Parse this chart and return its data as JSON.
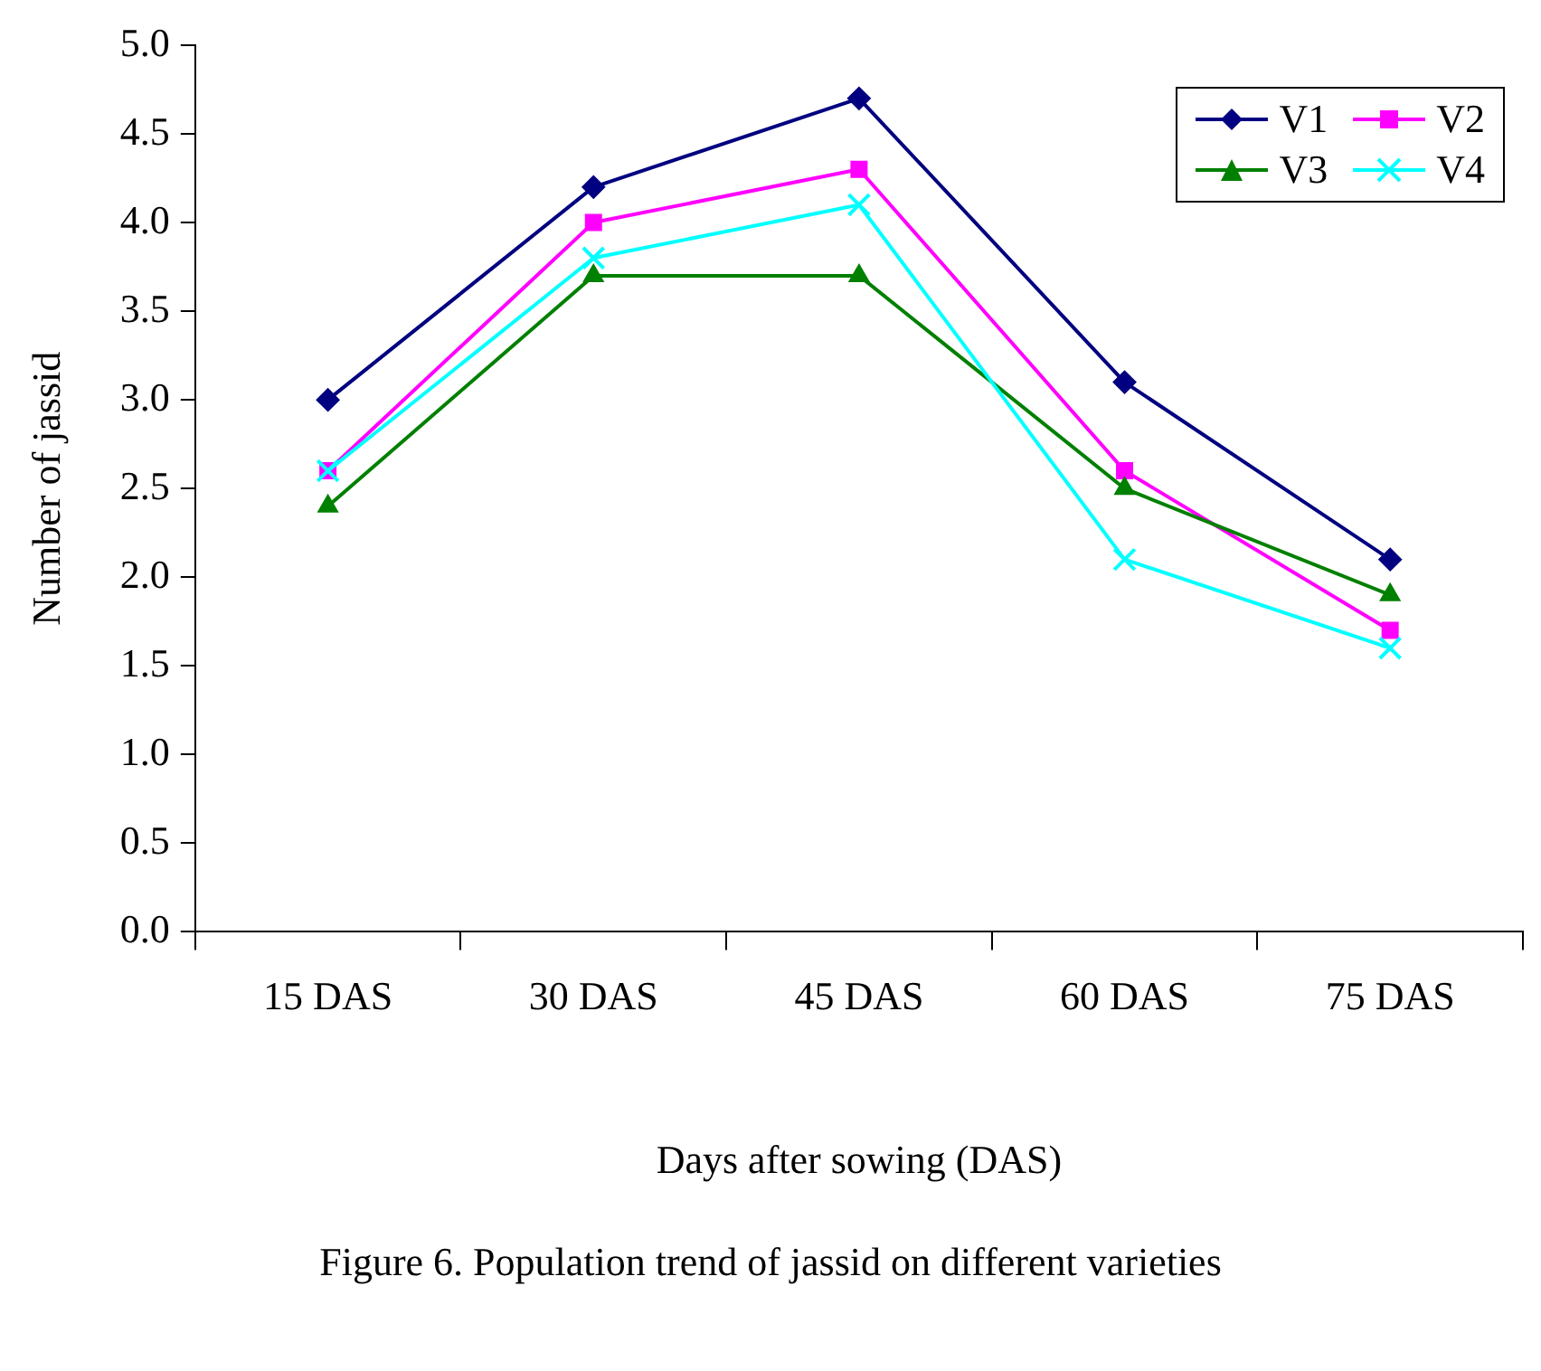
{
  "chart_data": {
    "type": "line",
    "xlabel": "Days after sowing (DAS)",
    "ylabel": "Number of jassid",
    "categories": [
      "15 DAS",
      "30 DAS",
      "45 DAS",
      "60 DAS",
      "75 DAS"
    ],
    "series": [
      {
        "name": "V1",
        "color": "#000080",
        "marker": "diamond",
        "values": [
          3.0,
          4.2,
          4.7,
          3.1,
          2.1
        ]
      },
      {
        "name": "V2",
        "color": "#ff00ff",
        "marker": "square",
        "values": [
          2.6,
          4.0,
          4.3,
          2.6,
          1.7
        ]
      },
      {
        "name": "V3",
        "color": "#008000",
        "marker": "triangle",
        "values": [
          2.4,
          3.7,
          3.7,
          2.5,
          1.9
        ]
      },
      {
        "name": "V4",
        "color": "#00ffff",
        "marker": "cross",
        "values": [
          2.6,
          3.8,
          4.1,
          2.1,
          1.6
        ]
      }
    ],
    "ylim": [
      0,
      5
    ],
    "yticks": [
      {
        "value": 0,
        "label": "0.0"
      },
      {
        "value": 0.5,
        "label": "0.5"
      },
      {
        "value": 1,
        "label": "1.0"
      },
      {
        "value": 1.5,
        "label": "1.5"
      },
      {
        "value": 2,
        "label": "2.0"
      },
      {
        "value": 2.5,
        "label": "2.5"
      },
      {
        "value": 3,
        "label": "3.0"
      },
      {
        "value": 3.5,
        "label": "3.5"
      },
      {
        "value": 4,
        "label": "4.0"
      },
      {
        "value": 4.5,
        "label": "4.5"
      },
      {
        "value": 5,
        "label": "5.0"
      }
    ],
    "grid": false,
    "legend": "top right",
    "line_style": "solid",
    "annotations": [
      "Figure 6. Population trend of jassid on different varieties"
    ]
  }
}
